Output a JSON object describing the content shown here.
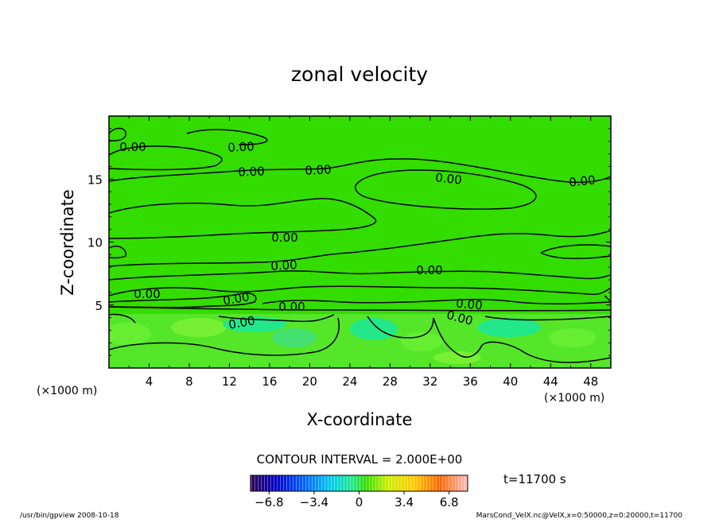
{
  "chart_data": {
    "type": "heatmap",
    "title": "zonal velocity",
    "xlabel": "X-coordinate",
    "ylabel": "Z-coordinate",
    "x_unit": "(×1000 m)",
    "y_unit": "(×1000 m)",
    "xlim": [
      0,
      50
    ],
    "ylim": [
      0,
      20
    ],
    "x_ticks": [
      "4",
      "8",
      "12",
      "16",
      "20",
      "24",
      "28",
      "32",
      "36",
      "40",
      "44",
      "48"
    ],
    "y_ticks": [
      "5",
      "10",
      "15"
    ],
    "contour_label": "0.00",
    "contour_interval_text": "CONTOUR INTERVAL = 2.000E+00",
    "colorbar": {
      "range": [
        -8.2,
        8.2
      ],
      "ticks": [
        "−6.8",
        "−3.4",
        "0",
        "3.4",
        "6.8"
      ],
      "tick_values": [
        -6.8,
        -3.4,
        0,
        3.4,
        6.8
      ]
    },
    "time_label": "t=11700 s",
    "footer_left": "/usr/bin/gpview   2008-10-18",
    "footer_right": "MarsCond_VelX.nc@VelX,x=0:50000,z=0:20000,t=11700",
    "colors": {
      "field": "#33dd00",
      "field_light": "#66ee33",
      "field_cyan": "#22e88a"
    }
  }
}
